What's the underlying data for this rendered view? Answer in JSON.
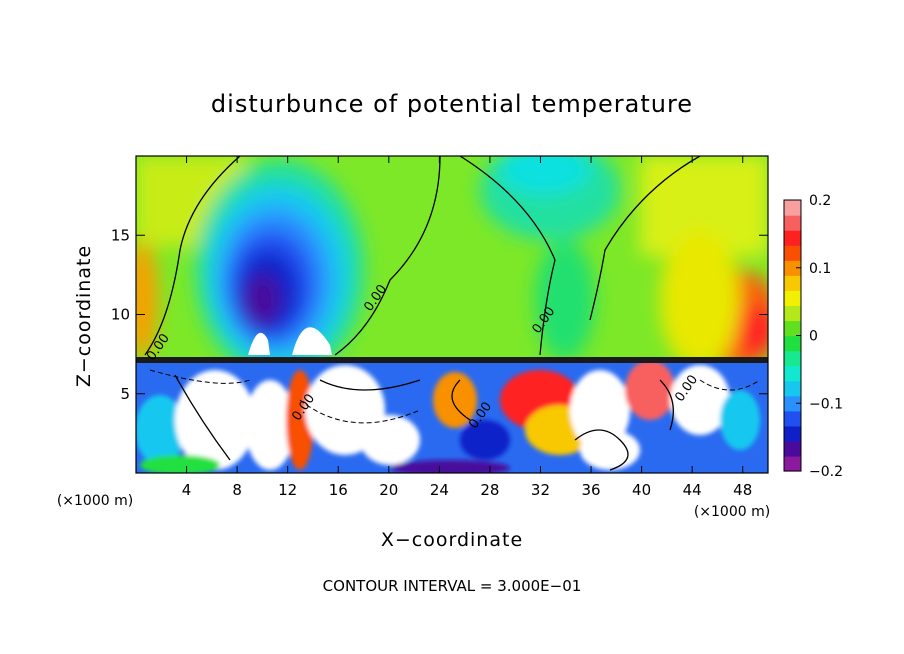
{
  "chart_data": {
    "type": "heatmap",
    "title": "disturbunce of potential temperature",
    "xlabel": "X−coordinate",
    "ylabel": "Z−coordinate",
    "x_unit_label": "(×1000 m)",
    "y_unit_label": "(×1000 m)",
    "footer": "CONTOUR INTERVAL = 3.000E−01",
    "xlim": [
      0,
      50
    ],
    "ylim": [
      0,
      20
    ],
    "x_ticks": [
      4,
      8,
      12,
      16,
      20,
      24,
      28,
      32,
      36,
      40,
      44,
      48
    ],
    "y_ticks": [
      5,
      10,
      15
    ],
    "colorbar": {
      "range": [
        -0.2,
        0.2
      ],
      "ticks": [
        0.2,
        0.1,
        0,
        -0.1,
        -0.2
      ],
      "tick_labels": [
        "0.2",
        "0.1",
        "0",
        "−0.1",
        "−0.2"
      ],
      "colors": [
        "#8c1a9e",
        "#4a0a9c",
        "#1020c8",
        "#2050f0",
        "#2a90ff",
        "#16c8f0",
        "#10e8d0",
        "#18e890",
        "#20e040",
        "#60e020",
        "#b4e818",
        "#f0f000",
        "#f8c800",
        "#f89000",
        "#f85000",
        "#ff2020",
        "#f86060",
        "#f8a0a0"
      ]
    },
    "contour_labels": [
      {
        "text": "0.00",
        "x": 2.0,
        "z": 7.8
      },
      {
        "text": "0.00",
        "x": 19.2,
        "z": 10.9
      },
      {
        "text": "0.00",
        "x": 32.5,
        "z": 9.5
      },
      {
        "text": "0.00",
        "x": 13.5,
        "z": 4.0
      },
      {
        "text": "0.00",
        "x": 27.5,
        "z": 3.5
      },
      {
        "text": "0.00",
        "x": 43.8,
        "z": 5.2
      }
    ],
    "field_features": [
      {
        "kind": "cold_anomaly",
        "x": 11.0,
        "z": 13.0,
        "value": -0.2
      },
      {
        "kind": "cool_region",
        "x": 34.0,
        "z": 19.0,
        "value": -0.06
      },
      {
        "kind": "warm_anomaly",
        "x": 48.5,
        "z": 9.5,
        "value": 0.13
      },
      {
        "kind": "warm_anomaly",
        "x": 0.5,
        "z": 10.0,
        "value": 0.1
      },
      {
        "kind": "interface_layer",
        "z": 7.2
      }
    ]
  }
}
